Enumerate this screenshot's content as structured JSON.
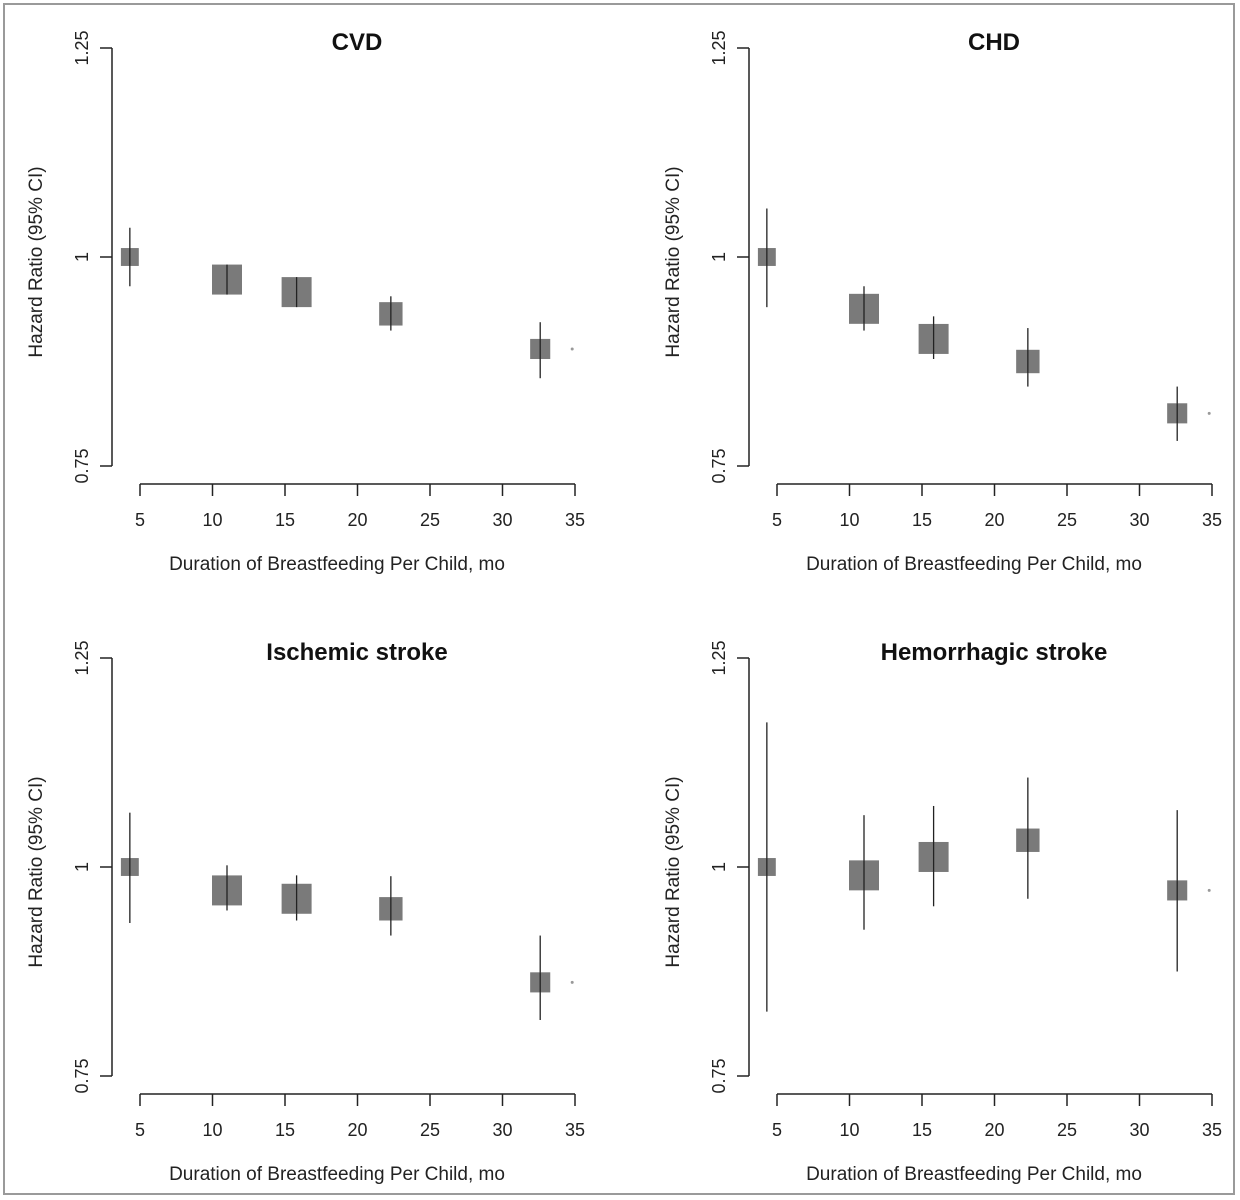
{
  "chart_data": [
    {
      "type": "scatter",
      "title": "CVD",
      "xlabel": "Duration of Breastfeeding Per Child, mo",
      "ylabel": "Hazard Ratio (95% CI)",
      "xticks": [
        "5",
        "10",
        "15",
        "20",
        "25",
        "30",
        "35"
      ],
      "yticks": [
        "0.75",
        "1",
        "1.25"
      ],
      "xlim": [
        5,
        35
      ],
      "ylim": [
        0.75,
        1.25
      ],
      "points": [
        {
          "x": 4.3,
          "hr": 1.0,
          "lo": 0.965,
          "hi": 1.035,
          "weight": 0.45
        },
        {
          "x": 11.0,
          "hr": 0.973,
          "lo": 0.958,
          "hi": 0.988,
          "weight": 1.0
        },
        {
          "x": 15.8,
          "hr": 0.958,
          "lo": 0.943,
          "hi": 0.974,
          "weight": 1.0
        },
        {
          "x": 22.3,
          "hr": 0.932,
          "lo": 0.912,
          "hi": 0.953,
          "weight": 0.7
        },
        {
          "x": 32.6,
          "hr": 0.89,
          "lo": 0.855,
          "hi": 0.922,
          "weight": 0.55
        }
      ]
    },
    {
      "type": "scatter",
      "title": "CHD",
      "xlabel": "Duration of Breastfeeding Per Child, mo",
      "ylabel": "Hazard Ratio (95% CI)",
      "xticks": [
        "5",
        "10",
        "15",
        "20",
        "25",
        "30",
        "35"
      ],
      "yticks": [
        "0.75",
        "1",
        "1.25"
      ],
      "xlim": [
        5,
        35
      ],
      "ylim": [
        0.75,
        1.25
      ],
      "points": [
        {
          "x": 4.3,
          "hr": 1.0,
          "lo": 0.94,
          "hi": 1.058,
          "weight": 0.45
        },
        {
          "x": 11.0,
          "hr": 0.938,
          "lo": 0.912,
          "hi": 0.965,
          "weight": 1.0
        },
        {
          "x": 15.8,
          "hr": 0.902,
          "lo": 0.878,
          "hi": 0.929,
          "weight": 1.0
        },
        {
          "x": 22.3,
          "hr": 0.875,
          "lo": 0.845,
          "hi": 0.915,
          "weight": 0.7
        },
        {
          "x": 32.6,
          "hr": 0.813,
          "lo": 0.78,
          "hi": 0.845,
          "weight": 0.55
        }
      ]
    },
    {
      "type": "scatter",
      "title": "Ischemic stroke",
      "xlabel": "Duration of Breastfeeding Per Child, mo",
      "ylabel": "Hazard Ratio (95% CI)",
      "xticks": [
        "5",
        "10",
        "15",
        "20",
        "25",
        "30",
        "35"
      ],
      "yticks": [
        "0.75",
        "1",
        "1.25"
      ],
      "xlim": [
        5,
        35
      ],
      "ylim": [
        0.75,
        1.25
      ],
      "points": [
        {
          "x": 4.3,
          "hr": 1.0,
          "lo": 0.933,
          "hi": 1.065,
          "weight": 0.45
        },
        {
          "x": 11.0,
          "hr": 0.972,
          "lo": 0.948,
          "hi": 1.002,
          "weight": 1.0
        },
        {
          "x": 15.8,
          "hr": 0.962,
          "lo": 0.936,
          "hi": 0.99,
          "weight": 1.0
        },
        {
          "x": 22.3,
          "hr": 0.95,
          "lo": 0.918,
          "hi": 0.989,
          "weight": 0.7
        },
        {
          "x": 32.6,
          "hr": 0.862,
          "lo": 0.817,
          "hi": 0.918,
          "weight": 0.55
        }
      ]
    },
    {
      "type": "scatter",
      "title": "Hemorrhagic stroke",
      "xlabel": "Duration of Breastfeeding Per Child, mo",
      "ylabel": "Hazard Ratio (95% CI)",
      "xticks": [
        "5",
        "10",
        "15",
        "20",
        "25",
        "30",
        "35"
      ],
      "yticks": [
        "0.75",
        "1",
        "1.25"
      ],
      "xlim": [
        5,
        35
      ],
      "ylim": [
        0.75,
        1.25
      ],
      "points": [
        {
          "x": 4.3,
          "hr": 1.0,
          "lo": 0.827,
          "hi": 1.173,
          "weight": 0.45
        },
        {
          "x": 11.0,
          "hr": 0.99,
          "lo": 0.925,
          "hi": 1.062,
          "weight": 1.0
        },
        {
          "x": 15.8,
          "hr": 1.012,
          "lo": 0.953,
          "hi": 1.073,
          "weight": 1.0
        },
        {
          "x": 22.3,
          "hr": 1.032,
          "lo": 0.962,
          "hi": 1.107,
          "weight": 0.7
        },
        {
          "x": 32.6,
          "hr": 0.972,
          "lo": 0.875,
          "hi": 1.068,
          "weight": 0.55
        }
      ]
    }
  ]
}
